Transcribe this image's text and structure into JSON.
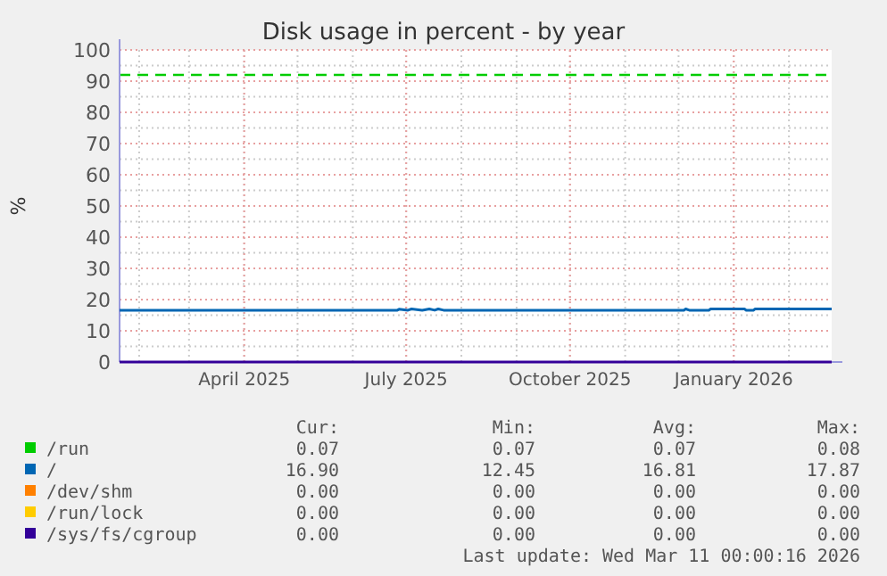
{
  "chart_data": {
    "type": "line",
    "title": "Disk usage in percent - by year",
    "ylabel": "%",
    "xlim": [
      "2025-01-21",
      "2026-02-25"
    ],
    "xticks": [
      {
        "value": "2025-04-01",
        "label": "April 2025"
      },
      {
        "value": "2025-07-01",
        "label": "July 2025"
      },
      {
        "value": "2025-10-01",
        "label": "October 2025"
      },
      {
        "value": "2026-01-01",
        "label": "January 2026"
      }
    ],
    "ylim": [
      0,
      100
    ],
    "yticks": [
      0,
      10,
      20,
      30,
      40,
      50,
      60,
      70,
      80,
      90,
      100
    ],
    "grid": true,
    "legend": "bottom",
    "marker": "none",
    "line_style": "solid",
    "series": [
      {
        "name": "/run",
        "color": "#00cc00"
      },
      {
        "name": "/",
        "color": "#0066b3",
        "x": [
          "2025-01-21",
          "2025-06-26",
          "2025-06-27",
          "2025-07-02",
          "2025-07-04",
          "2025-07-10",
          "2025-07-14",
          "2025-07-17",
          "2025-07-19",
          "2025-07-22",
          "2025-12-04",
          "2025-12-05",
          "2025-12-07",
          "2025-12-18",
          "2025-12-19",
          "2026-01-07",
          "2026-01-08",
          "2026-01-12",
          "2026-01-13",
          "2026-02-25"
        ],
        "values": [
          16.6,
          16.6,
          16.9,
          16.6,
          17.0,
          16.6,
          17.0,
          16.6,
          17.0,
          16.6,
          16.6,
          17.0,
          16.6,
          16.6,
          17.0,
          17.0,
          16.6,
          16.6,
          17.0,
          17.0
        ]
      },
      {
        "name": "/dev/shm",
        "color": "#ff8000"
      },
      {
        "name": "/run/lock",
        "color": "#ffcc00"
      },
      {
        "name": "/sys/fs/cgroup",
        "color": "#330099",
        "x": [
          "2025-01-21",
          "2026-02-25"
        ],
        "values": [
          0,
          0
        ]
      }
    ],
    "ref_lines": [
      {
        "axis": "y",
        "value": 92,
        "color": "#00cc00",
        "line_style": "dashed"
      }
    ],
    "annotations": [
      "Cur:",
      "Min:",
      "Avg:",
      "Max:",
      "0.07",
      "0.07",
      "0.07",
      "0.08",
      "16.90",
      "12.45",
      "16.81",
      "17.87",
      "0.00",
      "0.00",
      "0.00",
      "0.00",
      "0.00",
      "0.00",
      "0.00",
      "0.00",
      "0.00",
      "0.00",
      "0.00",
      "0.00",
      "Last update: Wed Mar 11 00:00:16 2026"
    ]
  }
}
